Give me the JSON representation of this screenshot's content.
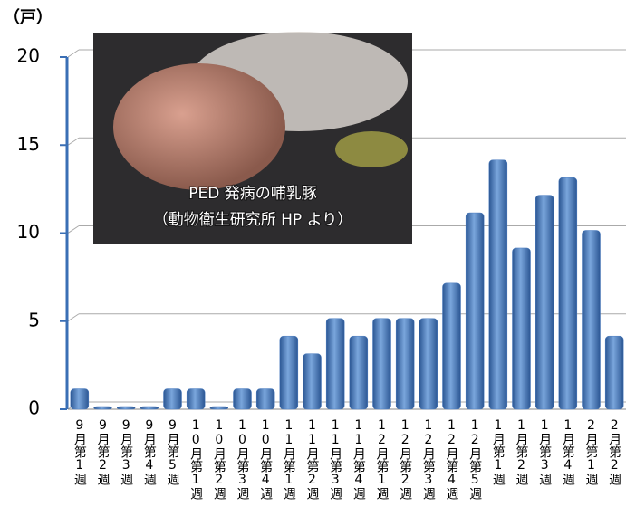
{
  "chart_data": {
    "type": "bar",
    "y_axis_label": "（戸）",
    "photo_caption": [
      "PED 発病の哺乳豚",
      "（動物衛生研究所 HP より）"
    ],
    "categories": [
      "9月第1週",
      "9月第2週",
      "9月第3週",
      "9月第4週",
      "9月第5週",
      "10月第1週",
      "10月第2週",
      "10月第3週",
      "10月第4週",
      "11月第1週",
      "11月第2週",
      "11月第3週",
      "11月第4週",
      "12月第1週",
      "12月第2週",
      "12月第3週",
      "12月第4週",
      "12月第5週",
      "1月第1週",
      "1月第2週",
      "1月第3週",
      "1月第4週",
      "2月第1週",
      "2月第2週"
    ],
    "values": [
      1,
      0,
      0,
      0,
      1,
      1,
      0,
      1,
      1,
      4,
      3,
      5,
      4,
      5,
      5,
      5,
      7,
      11,
      14,
      9,
      12,
      13,
      10,
      4
    ],
    "color": "#4a7cc0",
    "ylim": [
      0,
      20
    ],
    "yticks": [
      0,
      5,
      10,
      15,
      20
    ],
    "grid": true
  }
}
